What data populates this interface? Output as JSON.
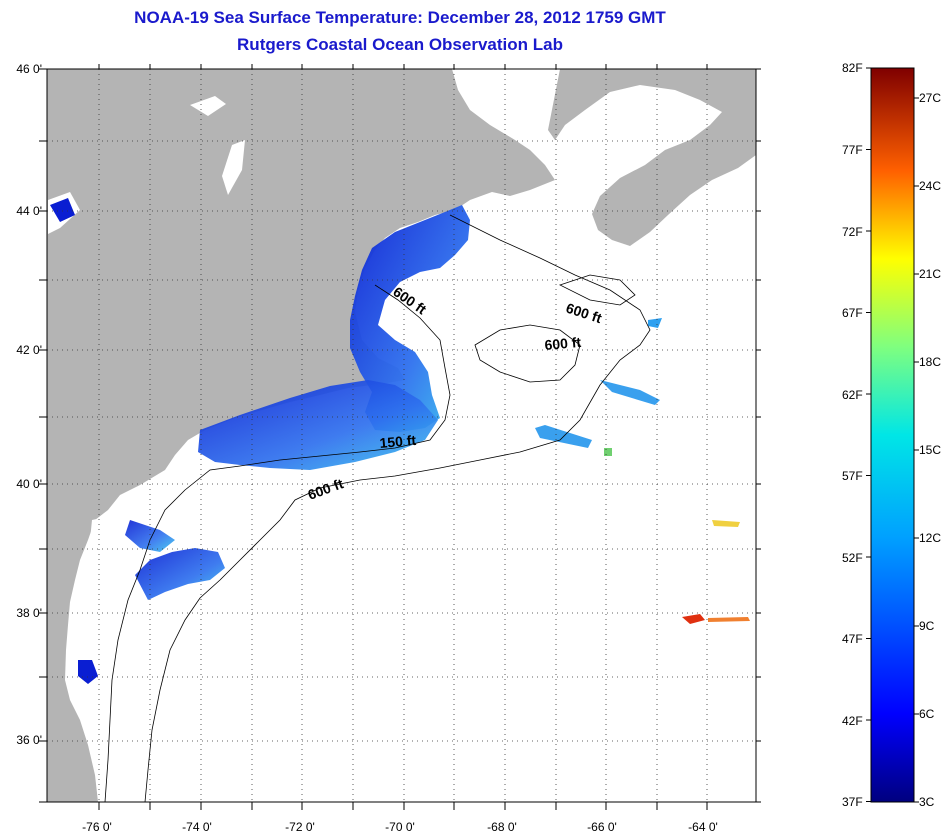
{
  "title": {
    "line1": "NOAA-19 Sea Surface Temperature:  December 28, 2012 1759 GMT",
    "line2": "Rutgers Coastal Ocean Observation Lab"
  },
  "map": {
    "lat_labels": [
      "46 0'",
      "44 0'",
      "42 0'",
      "40 0'",
      "38 0'",
      "36 0'"
    ],
    "lon_labels": [
      "-76 0'",
      "-74 0'",
      "-72 0'",
      "-70 0'",
      "-68 0'",
      "-66 0'",
      "-64 0'"
    ],
    "lat_range": [
      35,
      46
    ],
    "lon_range": [
      -77,
      -62.5
    ],
    "grid": "dotted",
    "contour_labels": [
      "600 ft",
      "600 ft",
      "600 ft",
      "150 ft",
      "600 ft"
    ]
  },
  "colorbar": {
    "fahrenheit_labels": [
      "82F",
      "77F",
      "72F",
      "67F",
      "62F",
      "57F",
      "52F",
      "47F",
      "42F",
      "37F"
    ],
    "celsius_labels": [
      "27C",
      "24C",
      "21C",
      "18C",
      "15C",
      "12C",
      "9C",
      "6C",
      "3C"
    ],
    "range_f": [
      37,
      82
    ]
  },
  "colors": {
    "title": "#1a1acc",
    "land": "#b4b4b4",
    "ocean_no_data": "#ffffff",
    "cold": "#0a1ed2",
    "mid": "#2ea0f0",
    "warm": "#e03010"
  }
}
